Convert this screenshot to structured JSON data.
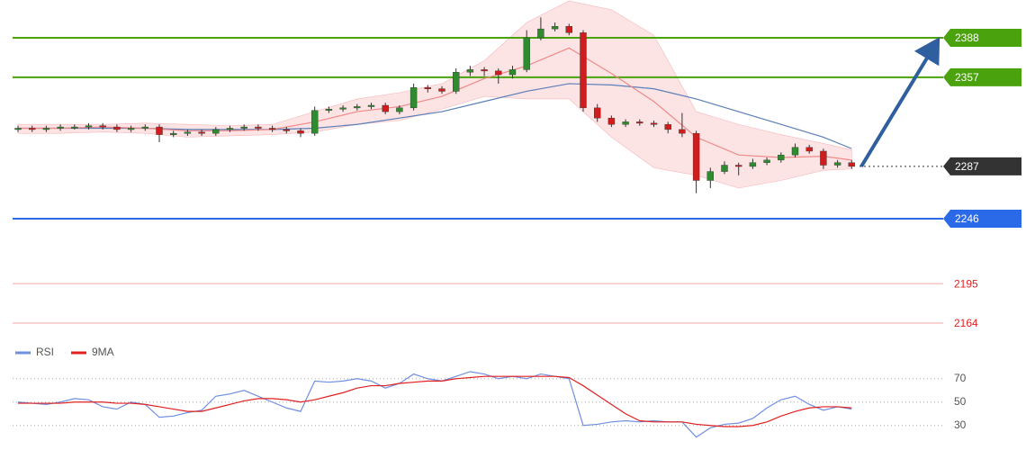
{
  "chart_data": {
    "type": "candlestick",
    "ylim": [
      2156.2,
      2417.7
    ],
    "open": [
      2316,
      2317,
      2316,
      2317,
      2318,
      2318,
      2319,
      2318,
      2316,
      2317,
      2318,
      2312,
      2313,
      2314,
      2313,
      2316,
      2317,
      2318,
      2317,
      2316,
      2315,
      2313,
      2331,
      2332,
      2333,
      2334,
      2335,
      2330,
      2333,
      2349,
      2348,
      2346,
      2361,
      2363,
      2362,
      2359,
      2363,
      2388,
      2395,
      2397,
      2392,
      2333,
      2325,
      2320,
      2322,
      2321,
      2320,
      2316,
      2313,
      2276,
      2283,
      2288,
      2287,
      2290,
      2292,
      2296,
      2302,
      2299,
      2288,
      2290
    ],
    "high": [
      2319,
      2319,
      2319,
      2320,
      2320,
      2321,
      2321,
      2320,
      2319,
      2320,
      2320,
      2315,
      2316,
      2316,
      2318,
      2319,
      2320,
      2320,
      2319,
      2318,
      2317,
      2334,
      2334,
      2335,
      2336,
      2337,
      2337,
      2335,
      2352,
      2351,
      2350,
      2364,
      2366,
      2365,
      2364,
      2366,
      2394,
      2404,
      2400,
      2399,
      2394,
      2336,
      2327,
      2324,
      2324,
      2323,
      2322,
      2329,
      2315,
      2286,
      2291,
      2290,
      2293,
      2294,
      2298,
      2305,
      2304,
      2301,
      2292,
      2292
    ],
    "low": [
      2314,
      2314,
      2314,
      2315,
      2316,
      2316,
      2316,
      2314,
      2314,
      2315,
      2306,
      2310,
      2311,
      2311,
      2311,
      2314,
      2315,
      2315,
      2314,
      2313,
      2310,
      2311,
      2329,
      2330,
      2331,
      2332,
      2328,
      2328,
      2331,
      2345,
      2344,
      2344,
      2358,
      2358,
      2352,
      2356,
      2361,
      2386,
      2393,
      2390,
      2330,
      2322,
      2318,
      2318,
      2319,
      2318,
      2313,
      2310,
      2266,
      2270,
      2281,
      2280,
      2285,
      2288,
      2290,
      2294,
      2297,
      2285,
      2286,
      2285
    ],
    "close": [
      2317,
      2316,
      2317,
      2318,
      2318,
      2319,
      2318,
      2316,
      2317,
      2318,
      2312,
      2313,
      2314,
      2313,
      2316,
      2317,
      2318,
      2317,
      2316,
      2315,
      2313,
      2331,
      2332,
      2333,
      2334,
      2335,
      2330,
      2333,
      2349,
      2348,
      2346,
      2361,
      2363,
      2362,
      2359,
      2363,
      2388,
      2395,
      2397,
      2392,
      2333,
      2325,
      2320,
      2322,
      2321,
      2320,
      2316,
      2313,
      2276,
      2283,
      2288,
      2287,
      2290,
      2292,
      2296,
      2302,
      2299,
      2288,
      2290,
      2287
    ],
    "up_color": "#2e8b2e",
    "down_color": "#d01c1c",
    "ma_index": [
      0,
      3,
      6,
      9,
      12,
      15,
      18,
      21,
      24,
      27,
      30,
      33,
      36,
      39,
      42,
      45,
      48,
      51,
      54,
      57,
      59
    ],
    "ma_slow": {
      "color": "#5b7fb8",
      "values": [
        2317,
        2317,
        2317,
        2317,
        2316,
        2316,
        2316,
        2317,
        2320,
        2325,
        2330,
        2338,
        2346,
        2352,
        2351,
        2348,
        2340,
        2330,
        2320,
        2310,
        2301
      ]
    },
    "ma_fast": {
      "color": "#f08a8a",
      "values": [
        2317,
        2317,
        2318,
        2317,
        2315,
        2315,
        2316,
        2322,
        2330,
        2334,
        2342,
        2356,
        2366,
        2380,
        2360,
        2338,
        2310,
        2296,
        2294,
        2295,
        2292
      ]
    },
    "band": {
      "color": "#fbd9db",
      "upper": [
        2320,
        2320,
        2320,
        2321,
        2320,
        2319,
        2320,
        2330,
        2340,
        2345,
        2352,
        2370,
        2400,
        2417,
        2410,
        2390,
        2330,
        2320,
        2312,
        2305,
        2300
      ],
      "lower": [
        2313,
        2313,
        2314,
        2313,
        2310,
        2311,
        2312,
        2314,
        2320,
        2323,
        2332,
        2342,
        2340,
        2340,
        2310,
        2286,
        2280,
        2270,
        2276,
        2284,
        2285
      ]
    },
    "levels": [
      {
        "value": 2388,
        "color": "#4aa30d",
        "label_box": true,
        "dotted": false
      },
      {
        "value": 2357,
        "color": "#4aa30d",
        "label_box": true,
        "dotted": false
      },
      {
        "value": 2287,
        "color": "#333333",
        "label_box": true,
        "dotted": true
      },
      {
        "value": 2246,
        "color": "#2a6ae8",
        "label_box": true,
        "dotted": false
      },
      {
        "value": 2195,
        "color": "#e02020",
        "label_box": false,
        "dotted": false
      },
      {
        "value": 2164,
        "color": "#e02020",
        "label_box": false,
        "dotted": false
      }
    ],
    "rsi_panel": {
      "ylim": [
        9,
        86
      ],
      "yticks": [
        70,
        50,
        30
      ],
      "series": [
        {
          "name": "RSI",
          "color": "#6f8fe0",
          "values": [
            50,
            49,
            48,
            50,
            53,
            52,
            46,
            44,
            50,
            48,
            37,
            38,
            41,
            43,
            55,
            57,
            60,
            55,
            50,
            45,
            42,
            68,
            67,
            68,
            70,
            68,
            62,
            66,
            74,
            70,
            68,
            72,
            76,
            74,
            70,
            72,
            70,
            74,
            72,
            70,
            30,
            31,
            33,
            34,
            33,
            34,
            33,
            33,
            20,
            28,
            31,
            32,
            36,
            45,
            52,
            55,
            48,
            43,
            46,
            44
          ]
        },
        {
          "name": "9MA",
          "color": "#e02020",
          "values": [
            49,
            49,
            49,
            49,
            50,
            50,
            50,
            49,
            49,
            48,
            46,
            44,
            42,
            42,
            45,
            48,
            51,
            53,
            53,
            52,
            50,
            52,
            55,
            58,
            62,
            64,
            64,
            66,
            67,
            68,
            68,
            70,
            71,
            72,
            72,
            72,
            72,
            72,
            72,
            71,
            64,
            56,
            48,
            40,
            34,
            33,
            33,
            33,
            31,
            30,
            29,
            29,
            30,
            33,
            38,
            42,
            45,
            46,
            46,
            45
          ]
        }
      ]
    }
  }
}
